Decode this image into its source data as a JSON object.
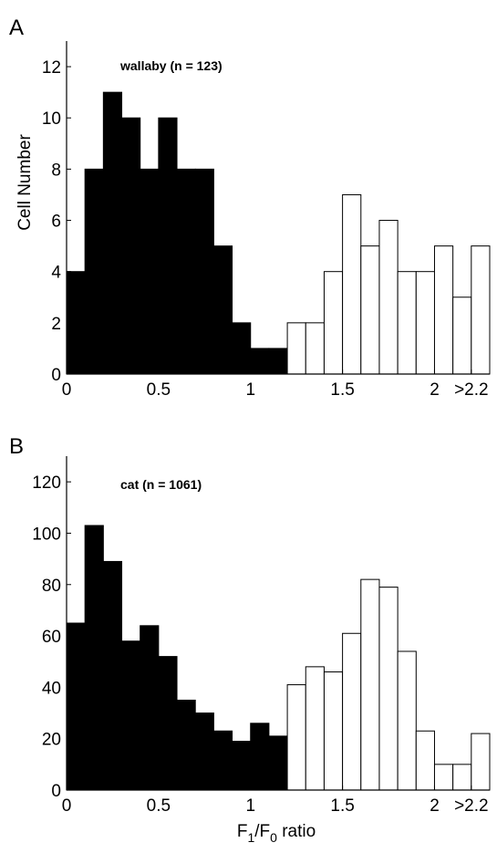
{
  "figure": {
    "x_label": {
      "main_before": "F",
      "sub1": "1",
      "slash": "/F",
      "sub2": "0",
      "after": " ratio"
    }
  },
  "chart_data": [
    {
      "type": "bar",
      "panel_letter": "A",
      "annotation": "wallaby (n = 123)",
      "ylabel": "Cell Number",
      "xlabel": "",
      "bin_width": 0.1,
      "ylim": [
        0,
        13
      ],
      "xlim": [
        0,
        2.3
      ],
      "y_ticks": [
        0,
        2,
        4,
        6,
        8,
        10,
        12
      ],
      "x_ticks": [
        {
          "value": 0,
          "label": "0"
        },
        {
          "value": 0.5,
          "label": "0.5"
        },
        {
          "value": 1,
          "label": "1"
        },
        {
          "value": 1.5,
          "label": "1.5"
        },
        {
          "value": 2,
          "label": "2"
        },
        {
          "value": 2.2,
          "label": ">2.2"
        }
      ],
      "fill_black_until": 1.2,
      "bins_start": [
        0,
        0.1,
        0.2,
        0.3,
        0.4,
        0.5,
        0.6,
        0.7,
        0.8,
        0.9,
        1.0,
        1.1,
        1.2,
        1.3,
        1.4,
        1.5,
        1.6,
        1.7,
        1.8,
        1.9,
        2.0,
        2.1,
        2.2
      ],
      "values": [
        4,
        8,
        11,
        10,
        8,
        10,
        8,
        8,
        5,
        2,
        1,
        1,
        2,
        2,
        4,
        7,
        5,
        6,
        4,
        4,
        5,
        3,
        5
      ]
    },
    {
      "type": "bar",
      "panel_letter": "B",
      "annotation": "cat (n = 1061)",
      "ylabel": "",
      "xlabel": "F1/F0 ratio",
      "bin_width": 0.1,
      "ylim": [
        0,
        130
      ],
      "xlim": [
        0,
        2.3
      ],
      "y_ticks": [
        0,
        20,
        40,
        60,
        80,
        100,
        120
      ],
      "x_ticks": [
        {
          "value": 0,
          "label": "0"
        },
        {
          "value": 0.5,
          "label": "0.5"
        },
        {
          "value": 1,
          "label": "1"
        },
        {
          "value": 1.5,
          "label": "1.5"
        },
        {
          "value": 2,
          "label": "2"
        },
        {
          "value": 2.2,
          "label": ">2.2"
        }
      ],
      "fill_black_until": 1.2,
      "bins_start": [
        0,
        0.1,
        0.2,
        0.3,
        0.4,
        0.5,
        0.6,
        0.7,
        0.8,
        0.9,
        1.0,
        1.1,
        1.2,
        1.3,
        1.4,
        1.5,
        1.6,
        1.7,
        1.8,
        1.9,
        2.0,
        2.1,
        2.2
      ],
      "values": [
        65,
        103,
        89,
        58,
        64,
        52,
        35,
        30,
        23,
        19,
        26,
        21,
        41,
        48,
        46,
        61,
        82,
        79,
        54,
        23,
        10,
        10,
        22
      ]
    }
  ]
}
